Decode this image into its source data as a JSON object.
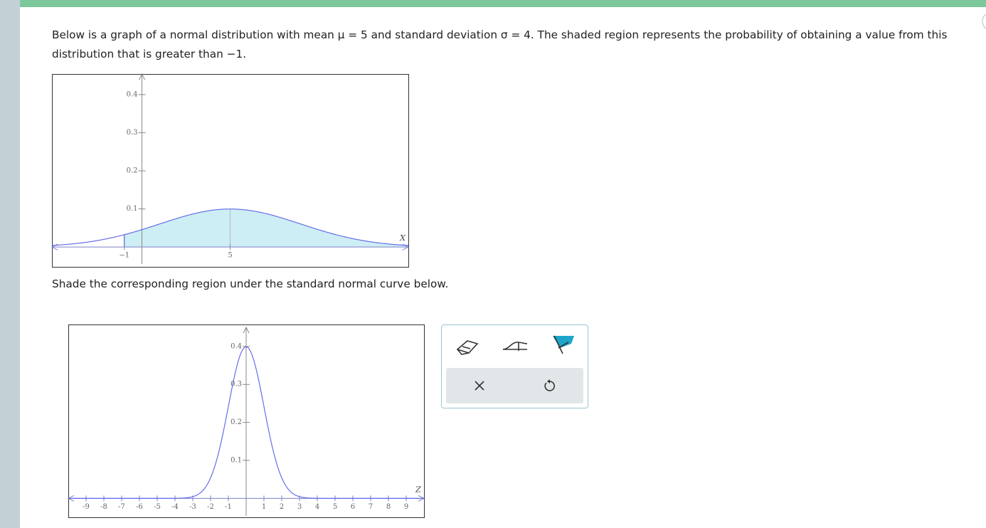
{
  "prompt": "Below is a graph of a normal distribution with mean μ = 5 and standard deviation σ = 4. The shaded region represents the probability of obtaining a value from this distribution that is greater than −1.",
  "instruction": "Shade the corresponding region under the standard normal curve below.",
  "graph1": {
    "type": "normal",
    "mean": 5,
    "sd": 4,
    "shade_from": -1,
    "x_label": "X",
    "xlim": [
      -5.1,
      15.1
    ],
    "ylim": [
      -0.052,
      0.454
    ],
    "xticks": [
      {
        "value": -1,
        "label": "−1"
      },
      5
    ],
    "yticks": [
      0.1,
      0.2,
      0.3,
      0.4
    ],
    "color": "#5b62e8",
    "shade_color": "#cdeef4"
  },
  "graph2": {
    "type": "normal",
    "mean": 0,
    "sd": 1,
    "x_label": "Z",
    "xlim": [
      -10,
      10
    ],
    "ylim": [
      -0.05,
      0.456
    ],
    "xticks": [
      -9,
      -8,
      -7,
      -6,
      -5,
      -4,
      -3,
      -2,
      -1,
      1,
      2,
      3,
      4,
      5,
      6,
      7,
      8,
      9
    ],
    "yticks": [
      0.1,
      0.2,
      0.3,
      0.4
    ],
    "color": "#5b62e8"
  }
}
